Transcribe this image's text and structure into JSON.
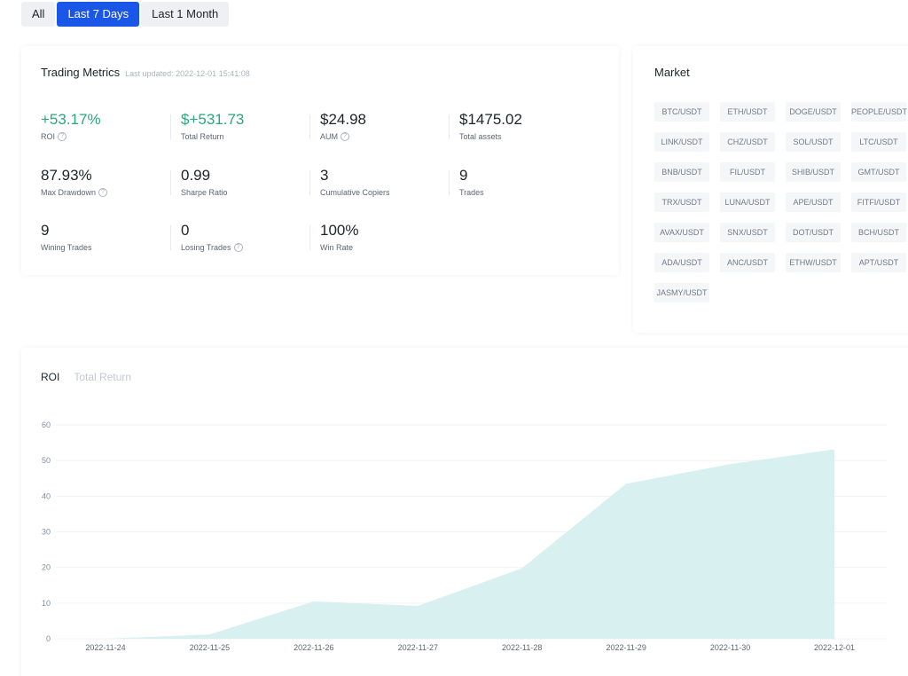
{
  "period_tabs": [
    "All",
    "Last 7 Days",
    "Last 1 Month"
  ],
  "period_active": 1,
  "metrics": {
    "title": "Trading Metrics",
    "last_updated": "Last updated: 2022-12-01 15:41:08",
    "items": [
      {
        "value": "+53.17%",
        "label": "ROI",
        "help": true,
        "green": true
      },
      {
        "value": "$+531.73",
        "label": "Total Return",
        "help": false,
        "green": true
      },
      {
        "value": "$24.98",
        "label": "AUM",
        "help": true,
        "green": false
      },
      {
        "value": "$1475.02",
        "label": "Total assets",
        "help": false,
        "green": false
      },
      {
        "value": "87.93%",
        "label": "Max Drawdown",
        "help": true,
        "green": false
      },
      {
        "value": "0.99",
        "label": "Sharpe Ratio",
        "help": false,
        "green": false
      },
      {
        "value": "3",
        "label": "Cumulative Copiers",
        "help": false,
        "green": false
      },
      {
        "value": "9",
        "label": "Trades",
        "help": false,
        "green": false
      },
      {
        "value": "9",
        "label": "Wining Trades",
        "help": false,
        "green": false
      },
      {
        "value": "0",
        "label": "Losing Trades",
        "help": true,
        "green": false
      },
      {
        "value": "100%",
        "label": "Win Rate",
        "help": false,
        "green": false
      }
    ]
  },
  "market": {
    "title": "Market",
    "pairs": [
      "BTC/USDT",
      "ETH/USDT",
      "DOGE/USDT",
      "PEOPLE/USDT",
      "LINK/USDT",
      "CHZ/USDT",
      "SOL/USDT",
      "LTC/USDT",
      "BNB/USDT",
      "FIL/USDT",
      "SHIB/USDT",
      "GMT/USDT",
      "TRX/USDT",
      "LUNA/USDT",
      "APE/USDT",
      "FITFI/USDT",
      "AVAX/USDT",
      "SNX/USDT",
      "DOT/USDT",
      "BCH/USDT",
      "ADA/USDT",
      "ANC/USDT",
      "ETHW/USDT",
      "APT/USDT",
      "JASMY/USDT"
    ]
  },
  "chart_tabs": [
    "ROI",
    "Total Return"
  ],
  "chart_tab_active": 0,
  "colors": {
    "accent": "#1a56e8",
    "positive": "#2aa77b",
    "area_fill": "#d8f0ef"
  },
  "chart_data": {
    "type": "area",
    "x": [
      "2022-11-24",
      "2022-11-25",
      "2022-11-26",
      "2022-11-27",
      "2022-11-28",
      "2022-11-29",
      "2022-11-30",
      "2022-12-01"
    ],
    "values": [
      0,
      1.2,
      10.5,
      9.2,
      19.8,
      43.5,
      49.0,
      53.17
    ],
    "yticks": [
      0,
      10,
      20,
      30,
      40,
      50,
      60
    ],
    "ylim": [
      0,
      60
    ],
    "grid": true
  }
}
